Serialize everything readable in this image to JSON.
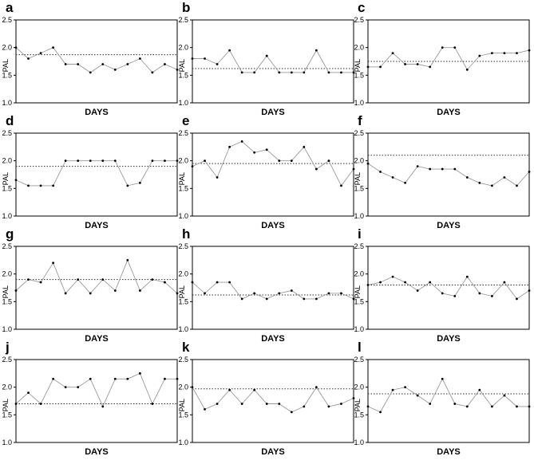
{
  "chart_data": [
    {
      "panel": "a",
      "type": "line",
      "xlabel": "DAYS",
      "ylabel": "PAL",
      "ylim": [
        1.0,
        2.5
      ],
      "yticks": [
        "1.0",
        "1.5",
        "2.0",
        "2.5"
      ],
      "reference": 1.87,
      "values": [
        2.0,
        1.8,
        1.9,
        2.0,
        1.7,
        1.7,
        1.55,
        1.7,
        1.6,
        1.7,
        1.8,
        1.55,
        1.7,
        1.6
      ]
    },
    {
      "panel": "b",
      "type": "line",
      "xlabel": "DAYS",
      "ylabel": "PAL",
      "ylim": [
        1.0,
        2.5
      ],
      "yticks": [
        "1.0",
        "1.5",
        "2.0",
        "2.5"
      ],
      "reference": 1.62,
      "values": [
        1.8,
        1.8,
        1.7,
        1.95,
        1.55,
        1.55,
        1.85,
        1.55,
        1.55,
        1.55,
        1.95,
        1.55,
        1.55,
        1.55
      ]
    },
    {
      "panel": "c",
      "type": "line",
      "xlabel": "DAYS",
      "ylabel": "PAL",
      "ylim": [
        1.0,
        2.5
      ],
      "yticks": [
        "1.0",
        "1.5",
        "2.0",
        "2.5"
      ],
      "reference": 1.75,
      "values": [
        1.65,
        1.65,
        1.9,
        1.7,
        1.7,
        1.65,
        2.0,
        2.0,
        1.6,
        1.85,
        1.9,
        1.9,
        1.9,
        1.95
      ]
    },
    {
      "panel": "d",
      "type": "line",
      "xlabel": "DAYS",
      "ylabel": "PAL",
      "ylim": [
        1.0,
        2.5
      ],
      "yticks": [
        "1.0",
        "1.5",
        "2.0",
        "2.5"
      ],
      "reference": 1.9,
      "values": [
        1.65,
        1.55,
        1.55,
        1.55,
        2.0,
        2.0,
        2.0,
        2.0,
        2.0,
        1.55,
        1.6,
        2.0,
        2.0,
        2.0
      ]
    },
    {
      "panel": "e",
      "type": "line",
      "xlabel": "DAYS",
      "ylabel": "PAL",
      "ylim": [
        1.0,
        2.5
      ],
      "yticks": [
        "1.0",
        "1.5",
        "2.0",
        "2.5"
      ],
      "reference": 1.95,
      "values": [
        1.9,
        2.0,
        1.7,
        2.25,
        2.35,
        2.15,
        2.2,
        2.0,
        2.0,
        2.25,
        1.85,
        2.0,
        1.55,
        1.85
      ]
    },
    {
      "panel": "f",
      "type": "line",
      "xlabel": "DAYS",
      "ylabel": "PAL",
      "ylim": [
        1.0,
        2.5
      ],
      "yticks": [
        "1.0",
        "1.5",
        "2.0",
        "2.5"
      ],
      "reference": 2.1,
      "values": [
        1.95,
        1.8,
        1.7,
        1.6,
        1.9,
        1.85,
        1.85,
        1.85,
        1.7,
        1.6,
        1.55,
        1.7,
        1.55,
        1.8
      ]
    },
    {
      "panel": "g",
      "type": "line",
      "xlabel": "DAYS",
      "ylabel": "PAL",
      "ylim": [
        1.0,
        2.5
      ],
      "yticks": [
        "1.0",
        "1.5",
        "2.0",
        "2.5"
      ],
      "reference": 1.9,
      "values": [
        1.7,
        1.9,
        1.85,
        2.2,
        1.65,
        1.9,
        1.65,
        1.9,
        1.7,
        2.25,
        1.7,
        1.9,
        1.85,
        1.65
      ]
    },
    {
      "panel": "h",
      "type": "line",
      "xlabel": "DAYS",
      "ylabel": "PAL",
      "ylim": [
        1.0,
        2.5
      ],
      "yticks": [
        "1.0",
        "1.5",
        "2.0",
        "2.5"
      ],
      "reference": 1.62,
      "values": [
        1.85,
        1.65,
        1.85,
        1.85,
        1.55,
        1.65,
        1.55,
        1.65,
        1.7,
        1.55,
        1.55,
        1.65,
        1.65,
        1.55
      ]
    },
    {
      "panel": "i",
      "type": "line",
      "xlabel": "DAYS",
      "ylabel": "PAL",
      "ylim": [
        1.0,
        2.5
      ],
      "yticks": [
        "1.0",
        "1.5",
        "2.0",
        "2.5"
      ],
      "reference": 1.8,
      "values": [
        1.8,
        1.85,
        1.95,
        1.85,
        1.7,
        1.85,
        1.65,
        1.6,
        1.95,
        1.65,
        1.6,
        1.85,
        1.55,
        1.7
      ]
    },
    {
      "panel": "j",
      "type": "line",
      "xlabel": "DAYS",
      "ylabel": "PAL",
      "ylim": [
        1.0,
        2.5
      ],
      "yticks": [
        "1.0",
        "1.5",
        "2.0",
        "2.5"
      ],
      "reference": 1.7,
      "values": [
        1.7,
        1.9,
        1.7,
        2.15,
        2.0,
        2.0,
        2.15,
        1.65,
        2.15,
        2.15,
        2.25,
        1.7,
        2.15,
        2.15
      ]
    },
    {
      "panel": "k",
      "type": "line",
      "xlabel": "DAYS",
      "ylabel": "PAL",
      "ylim": [
        1.0,
        2.5
      ],
      "yticks": [
        "1.0",
        "1.5",
        "2.0",
        "2.5"
      ],
      "reference": 1.97,
      "values": [
        2.0,
        1.6,
        1.7,
        1.95,
        1.7,
        1.95,
        1.7,
        1.7,
        1.55,
        1.65,
        2.0,
        1.65,
        1.7,
        1.8
      ]
    },
    {
      "panel": "l",
      "type": "line",
      "xlabel": "DAYS",
      "ylabel": "PAL",
      "ylim": [
        1.0,
        2.5
      ],
      "yticks": [
        "1.0",
        "1.5",
        "2.0",
        "2.5"
      ],
      "reference": 1.88,
      "values": [
        1.65,
        1.55,
        1.95,
        2.0,
        1.85,
        1.7,
        2.15,
        1.7,
        1.65,
        1.95,
        1.65,
        1.85,
        1.65,
        1.65
      ]
    }
  ]
}
